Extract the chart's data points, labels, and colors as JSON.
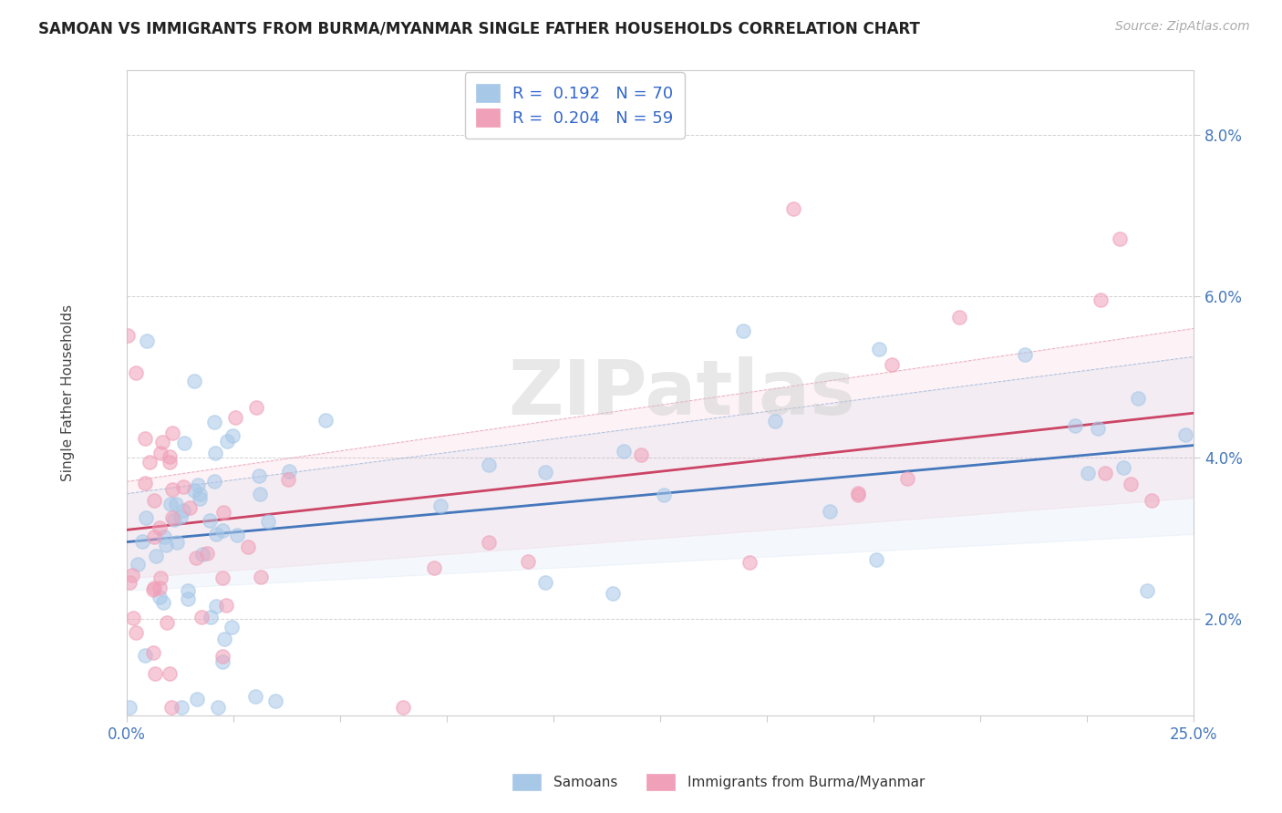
{
  "title": "SAMOAN VS IMMIGRANTS FROM BURMA/MYANMAR SINGLE FATHER HOUSEHOLDS CORRELATION CHART",
  "source": "Source: ZipAtlas.com",
  "ylabel": "Single Father Households",
  "xlim": [
    0.0,
    0.25
  ],
  "ylim": [
    0.008,
    0.088
  ],
  "xticks": [
    0.0,
    0.025,
    0.05,
    0.075,
    0.1,
    0.125,
    0.15,
    0.175,
    0.2,
    0.225,
    0.25
  ],
  "xtick_labels_show": [
    0.0,
    0.25
  ],
  "yticks": [
    0.02,
    0.04,
    0.06,
    0.08
  ],
  "legend_r1": "R =  0.192   N = 70",
  "legend_r2": "R =  0.204   N = 59",
  "color_samoan": "#a8c8e8",
  "color_burma": "#f0a0b8",
  "color_samoan_line": "#4477bb",
  "color_burma_line": "#cc4466",
  "color_ci_upper": "#cccccc",
  "watermark": "ZIPatlas",
  "N_samoan": 70,
  "N_burma": 59,
  "slope_samoan": 0.048,
  "intercept_samoan": 0.0295,
  "slope_burma": 0.058,
  "intercept_burma": 0.031,
  "marker_size": 120,
  "title_fontsize": 12,
  "tick_label_fontsize": 12,
  "legend_fontsize": 13
}
